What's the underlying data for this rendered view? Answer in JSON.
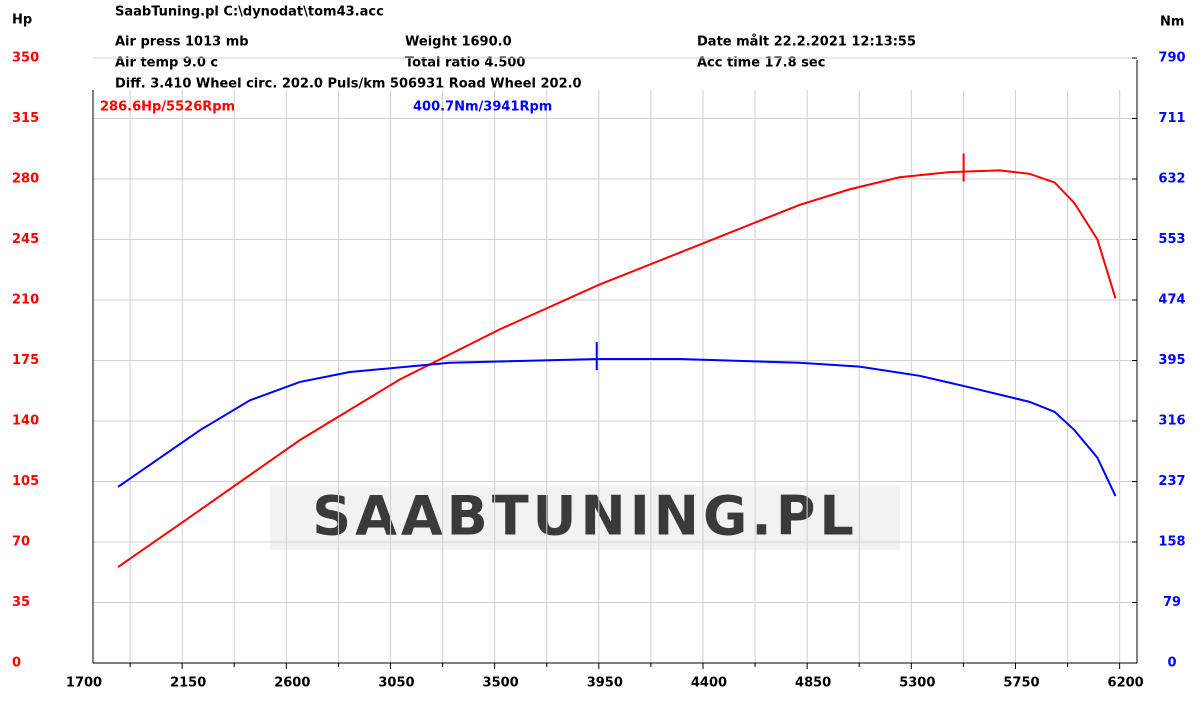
{
  "header": {
    "file": "SaabTuning.pl     C:\\dynodat\\tom43.acc",
    "air_press": "Air press  1013 mb",
    "air_temp": "Air temp   9.0 c",
    "diff": "Diff.     3.410   Wheel circ. 202.0   Puls/km  506931   Road Wheel 202.0",
    "weight": "Weight   1690.0",
    "total_ratio": "Total ratio 4.500",
    "date": "Date målt 22.2.2021 12:13:55",
    "acc_time": "Acc time   17.8 sec",
    "watermark": "SAABTUNING.PL"
  },
  "chart_data": {
    "type": "line",
    "y_label": "Hp",
    "y2_label": "Nm",
    "xlim": [
      1700,
      6275
    ],
    "xticks": [
      1700,
      2150,
      2600,
      3050,
      3500,
      3950,
      4400,
      4850,
      5300,
      5750,
      6200
    ],
    "ylim": [
      0,
      350
    ],
    "yticks": [
      0,
      35,
      70,
      105,
      140,
      175,
      210,
      245,
      280,
      315,
      350
    ],
    "y2lim": [
      0,
      790
    ],
    "y2ticks": [
      0,
      79,
      158,
      237,
      316,
      395,
      474,
      553,
      632,
      711,
      790
    ],
    "grid": true,
    "series": [
      {
        "name": "Hp",
        "color": "#ff0000",
        "peak_label": "286.6Hp/5526Rpm",
        "peak_x": 5526,
        "peak_value": 286.6,
        "x": [
          1873,
          2227,
          2659,
          3090,
          3522,
          3954,
          4386,
          4817,
          5033,
          5249,
          5465,
          5681,
          5811,
          5919,
          6005,
          6104,
          6182
        ],
        "values": [
          55.5,
          88.5,
          129,
          164,
          193,
          219,
          242,
          265,
          274,
          281,
          284,
          285,
          283,
          278,
          266,
          245,
          211
        ]
      },
      {
        "name": "Nm",
        "color": "#0000ff",
        "axis": "y2",
        "peak_label": "400.7Nm/3941Rpm",
        "peak_x": 3941,
        "peak_value": 400.7,
        "x": [
          1873,
          2227,
          2443,
          2659,
          2874,
          3306,
          3954,
          4299,
          4817,
          5076,
          5336,
          5551,
          5811,
          5919,
          6005,
          6104,
          6182
        ],
        "values": [
          230,
          304,
          343,
          367,
          380,
          392,
          397,
          397,
          392,
          387,
          375,
          360,
          341,
          328,
          304,
          268,
          218
        ]
      }
    ]
  }
}
